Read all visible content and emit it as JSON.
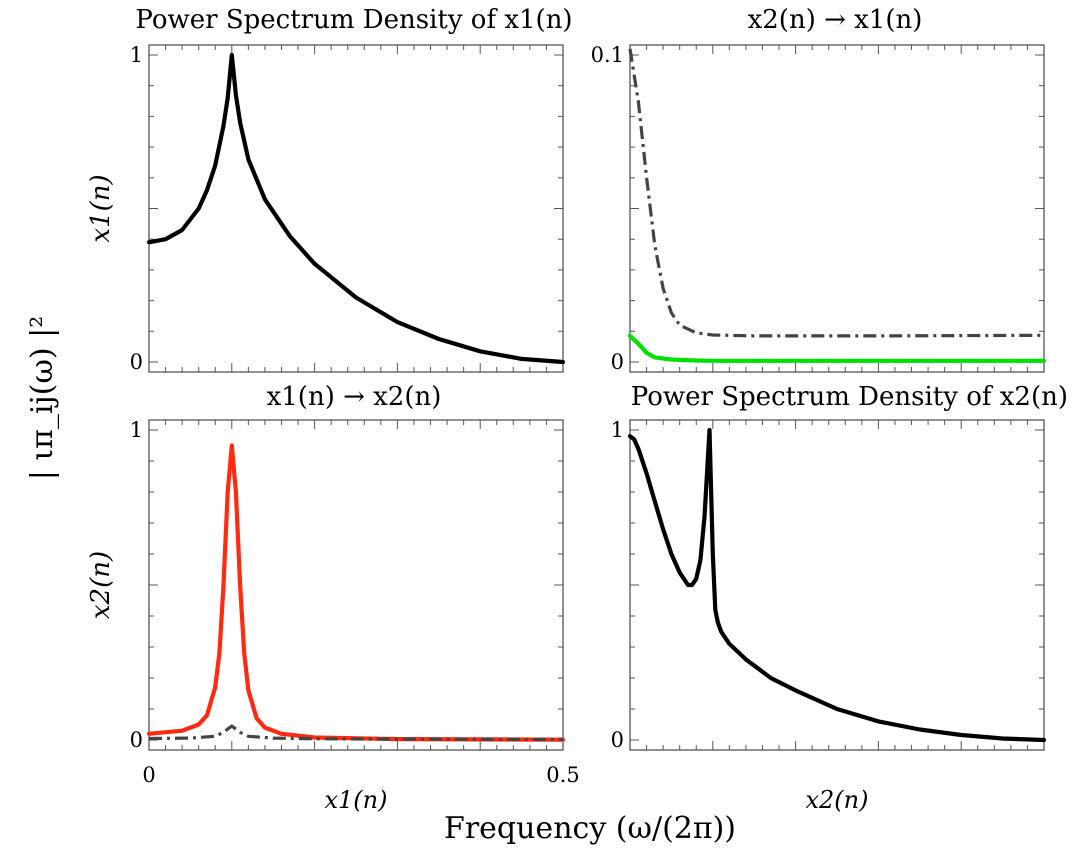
{
  "figure": {
    "ylabel": "| ιπ_ij(ω) |²",
    "xlabel": "Frequency (ω/(2π))"
  },
  "chart_data": [
    {
      "type": "line",
      "title": "Power Spectrum Density of x1(n)",
      "ylabel": "x1(n)",
      "xlabel": "",
      "xlim": [
        0,
        0.5
      ],
      "ylim": [
        0,
        1
      ],
      "yticks": [
        "0",
        "1"
      ],
      "xticks": [],
      "series": [
        {
          "style": "solid",
          "color": "#000000",
          "x": [
            0,
            0.02,
            0.04,
            0.06,
            0.07,
            0.08,
            0.09,
            0.095,
            0.1,
            0.105,
            0.11,
            0.12,
            0.14,
            0.17,
            0.2,
            0.25,
            0.3,
            0.35,
            0.4,
            0.45,
            0.5
          ],
          "y": [
            0.39,
            0.4,
            0.43,
            0.5,
            0.56,
            0.64,
            0.77,
            0.86,
            1.0,
            0.87,
            0.78,
            0.66,
            0.53,
            0.41,
            0.32,
            0.21,
            0.13,
            0.075,
            0.035,
            0.01,
            0.0
          ]
        }
      ]
    },
    {
      "type": "line",
      "title": "x2(n) → x1(n)",
      "ylabel": "",
      "xlabel": "",
      "xlim": [
        0,
        0.5
      ],
      "ylim": [
        0,
        0.1
      ],
      "yticks": [
        "0",
        "0.1"
      ],
      "xticks": [],
      "series": [
        {
          "style": "dashdot",
          "color": "#444444",
          "x": [
            0,
            0.01,
            0.02,
            0.03,
            0.04,
            0.05,
            0.06,
            0.08,
            0.1,
            0.15,
            0.2,
            0.3,
            0.4,
            0.5
          ],
          "y": [
            0.102,
            0.085,
            0.06,
            0.038,
            0.024,
            0.016,
            0.012,
            0.0095,
            0.0088,
            0.0085,
            0.0085,
            0.0085,
            0.0086,
            0.0087
          ]
        },
        {
          "style": "solid",
          "color": "#00e000",
          "x": [
            0,
            0.01,
            0.02,
            0.03,
            0.05,
            0.08,
            0.1,
            0.2,
            0.3,
            0.4,
            0.5
          ],
          "y": [
            0.0085,
            0.006,
            0.003,
            0.0015,
            0.0008,
            0.0005,
            0.0004,
            0.0004,
            0.0004,
            0.0004,
            0.0004
          ]
        }
      ]
    },
    {
      "type": "line",
      "title": "x1(n) → x2(n)",
      "ylabel": "x2(n)",
      "xlabel": "x1(n)",
      "xlim": [
        0,
        0.5
      ],
      "ylim": [
        0,
        1
      ],
      "yticks": [
        "0",
        "1"
      ],
      "xticks": [
        "0",
        "0.5"
      ],
      "series": [
        {
          "style": "solid",
          "color": "#ff2a10",
          "x": [
            0,
            0.04,
            0.06,
            0.07,
            0.08,
            0.085,
            0.09,
            0.095,
            0.1,
            0.105,
            0.11,
            0.115,
            0.12,
            0.13,
            0.14,
            0.16,
            0.2,
            0.3,
            0.4,
            0.5
          ],
          "y": [
            0.02,
            0.03,
            0.05,
            0.08,
            0.17,
            0.28,
            0.5,
            0.8,
            0.95,
            0.8,
            0.5,
            0.28,
            0.16,
            0.07,
            0.04,
            0.02,
            0.008,
            0.003,
            0.002,
            0.001
          ]
        },
        {
          "style": "dashdot",
          "color": "#444444",
          "x": [
            0,
            0.05,
            0.08,
            0.09,
            0.1,
            0.11,
            0.12,
            0.15,
            0.2,
            0.3,
            0.5
          ],
          "y": [
            0.005,
            0.006,
            0.012,
            0.025,
            0.045,
            0.025,
            0.012,
            0.006,
            0.004,
            0.003,
            0.002
          ]
        }
      ]
    },
    {
      "type": "line",
      "title": "Power Spectrum Density of x2(n)",
      "ylabel": "",
      "xlabel": "x2(n)",
      "xlim": [
        0,
        0.5
      ],
      "ylim": [
        0,
        1
      ],
      "yticks": [
        "0",
        "1"
      ],
      "xticks": [],
      "series": [
        {
          "style": "solid",
          "color": "#000000",
          "x": [
            0,
            0.005,
            0.01,
            0.02,
            0.03,
            0.04,
            0.05,
            0.06,
            0.07,
            0.075,
            0.08,
            0.085,
            0.09,
            0.093,
            0.096,
            0.1,
            0.103,
            0.106,
            0.11,
            0.12,
            0.14,
            0.17,
            0.2,
            0.25,
            0.3,
            0.35,
            0.4,
            0.45,
            0.5
          ],
          "y": [
            0.98,
            0.97,
            0.94,
            0.86,
            0.77,
            0.68,
            0.6,
            0.54,
            0.5,
            0.5,
            0.52,
            0.58,
            0.72,
            0.86,
            1.0,
            0.6,
            0.42,
            0.38,
            0.35,
            0.31,
            0.26,
            0.2,
            0.16,
            0.1,
            0.06,
            0.034,
            0.016,
            0.005,
            0.0
          ]
        }
      ]
    }
  ]
}
